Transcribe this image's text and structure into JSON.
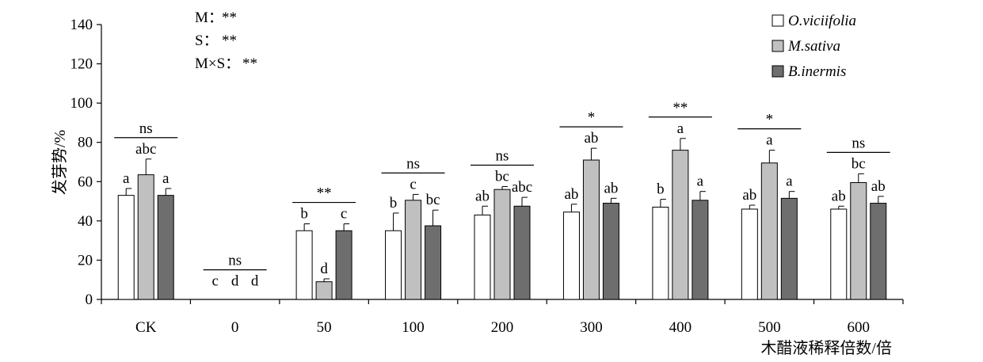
{
  "chart_data": {
    "type": "bar",
    "title": "",
    "xlabel": "木醋液稀释倍数/倍",
    "ylabel": "发芽势/%",
    "ylim": [
      0,
      140
    ],
    "yticks": [
      0,
      20,
      40,
      60,
      80,
      100,
      120,
      140
    ],
    "categories": [
      "CK",
      "0",
      "50",
      "100",
      "200",
      "300",
      "400",
      "500",
      "600"
    ],
    "grid": false,
    "legend_position": "top-right",
    "series": [
      {
        "name": "O.viciifolia",
        "color": "#ffffff",
        "values": [
          53,
          0,
          35,
          35,
          43,
          44.5,
          47,
          46,
          46
        ],
        "errors": [
          3.5,
          0,
          3.5,
          9,
          4.5,
          4,
          4,
          2,
          1.5
        ],
        "letters": [
          "a",
          "c",
          "b",
          "b",
          "ab",
          "ab",
          "b",
          "ab",
          "ab"
        ]
      },
      {
        "name": "M.sativa",
        "color": "#c0c0c0",
        "values": [
          63.5,
          0,
          9,
          50.5,
          56,
          71,
          76,
          69.5,
          59.5
        ],
        "errors": [
          8,
          0,
          1.5,
          3,
          1.5,
          6,
          6,
          6.5,
          4.5
        ],
        "letters": [
          "abc",
          "d",
          "d",
          "c",
          "bc",
          "ab",
          "a",
          "a",
          "bc"
        ]
      },
      {
        "name": "B.inermis",
        "color": "#6e6e6e",
        "values": [
          53,
          0,
          35,
          37.5,
          47.5,
          49,
          50.5,
          51.5,
          49
        ],
        "errors": [
          3.5,
          0,
          3.5,
          8,
          4.5,
          2.5,
          4.5,
          3.5,
          3.5
        ],
        "letters": [
          "a",
          "d",
          "c",
          "bc",
          "abc",
          "ab",
          "a",
          "a",
          "ab"
        ]
      }
    ],
    "group_significance": [
      "ns",
      "ns",
      "**",
      "ns",
      "ns",
      "*",
      "**",
      "*",
      "ns"
    ],
    "annotations": [
      {
        "label": "M：",
        "value": "**"
      },
      {
        "label": "S：",
        "value": "**"
      },
      {
        "label": "M×S：",
        "value": "**"
      }
    ]
  }
}
